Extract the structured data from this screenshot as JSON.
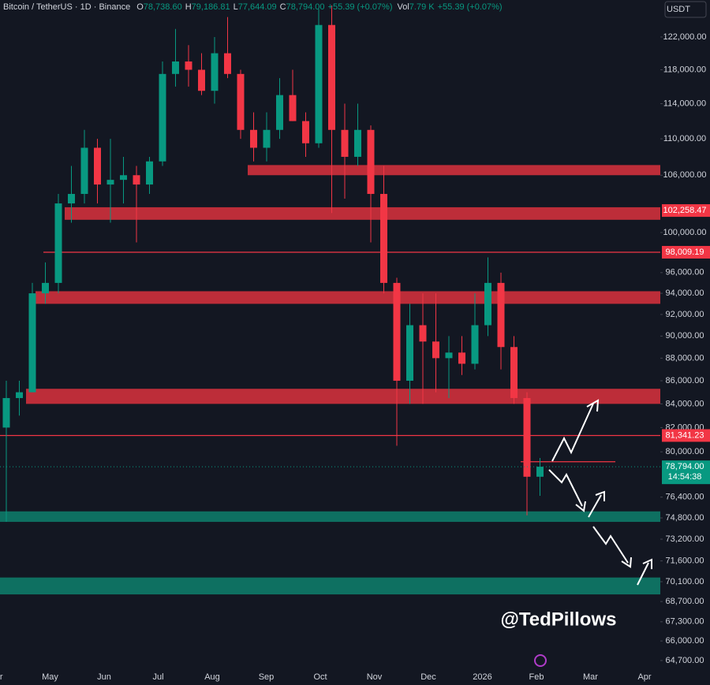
{
  "header": {
    "symbol": "Bitcoin / TetherUS · 1D · Binance",
    "ohlc": [
      {
        "label": "O",
        "value": "78,738.60"
      },
      {
        "label": "H",
        "value": "79,186.81"
      },
      {
        "label": "L",
        "value": "77,644.09"
      },
      {
        "label": "C",
        "value": "78,794.00"
      }
    ],
    "change": "+55.39 (+0.07%)",
    "volume_label": "Vol",
    "volume": "7.79 K",
    "volume_change": "+55.39 (+0.07%)"
  },
  "currency": "USDT",
  "watermark": "@TedPillows",
  "chart_data": {
    "type": "candlestick",
    "up_color": "#089981",
    "down_color": "#f23645",
    "months": [
      "Apr",
      "May",
      "Jun",
      "Jul",
      "Aug",
      "Sep",
      "Oct",
      "Nov",
      "Dec",
      "2026",
      "Feb",
      "Mar",
      "Apr"
    ],
    "open": [
      82000,
      84500,
      85000,
      94000,
      95000,
      103000,
      104000,
      109000,
      105000,
      105500,
      106000,
      105000,
      107500,
      117500,
      119000,
      118000,
      115500,
      120000,
      117500,
      111000,
      109000,
      111000,
      115000,
      112000,
      109500,
      123500,
      111000,
      108000,
      111000,
      104000,
      95000,
      86000,
      91000,
      89500,
      88000,
      88500,
      87500,
      91000,
      95000,
      89000,
      84500,
      78000
    ],
    "high": [
      86000,
      86000,
      95000,
      97000,
      104000,
      107000,
      111000,
      110000,
      110000,
      108000,
      107000,
      108000,
      119000,
      123000,
      121000,
      120000,
      122000,
      124500,
      118000,
      113000,
      113000,
      117000,
      118000,
      113000,
      125500,
      126000,
      114000,
      114000,
      111500,
      107000,
      95500,
      93000,
      94000,
      94000,
      90000,
      90000,
      94000,
      97500,
      96000,
      90000,
      85000,
      79500
    ],
    "low": [
      74500,
      83000,
      85000,
      93000,
      94000,
      101000,
      103000,
      103000,
      101000,
      103000,
      99000,
      104000,
      107000,
      116000,
      116000,
      115000,
      114000,
      117000,
      110000,
      107500,
      107500,
      110000,
      112000,
      108000,
      109000,
      102000,
      103500,
      107000,
      99000,
      94000,
      80500,
      84000,
      84000,
      85000,
      84500,
      86500,
      87000,
      90000,
      87000,
      84000,
      75000,
      76500
    ],
    "close": [
      84500,
      85000,
      94000,
      95000,
      103000,
      104000,
      109000,
      105000,
      105500,
      106000,
      105000,
      107500,
      117500,
      119000,
      118000,
      115500,
      120000,
      117500,
      111000,
      109000,
      111000,
      115000,
      112000,
      109500,
      123500,
      111000,
      108000,
      111000,
      104000,
      95000,
      86000,
      91000,
      89500,
      88000,
      88500,
      87500,
      91000,
      95000,
      89000,
      84500,
      78000,
      78800
    ],
    "log_scale": true,
    "ylim": [
      64180,
      126680
    ],
    "yticks": [
      {
        "value": 122000,
        "label": "122,000.00"
      },
      {
        "value": 118000,
        "label": "118,000.00"
      },
      {
        "value": 114000,
        "label": "114,000.00"
      },
      {
        "value": 110000,
        "label": "110,000.00"
      },
      {
        "value": 106000,
        "label": "106,000.00"
      },
      {
        "value": 100000,
        "label": "100,000.00"
      },
      {
        "value": 96000,
        "label": "96,000.00"
      },
      {
        "value": 94000,
        "label": "94,000.00"
      },
      {
        "value": 92000,
        "label": "92,000.00"
      },
      {
        "value": 90000,
        "label": "90,000.00"
      },
      {
        "value": 88000,
        "label": "88,000.00"
      },
      {
        "value": 86000,
        "label": "86,000.00"
      },
      {
        "value": 84000,
        "label": "84,000.00"
      },
      {
        "value": 82000,
        "label": "82,000.00"
      },
      {
        "value": 80000,
        "label": "80,000.00"
      },
      {
        "value": 76400,
        "label": "76,400.00"
      },
      {
        "value": 74800,
        "label": "74,800.00"
      },
      {
        "value": 73200,
        "label": "73,200.00"
      },
      {
        "value": 71600,
        "label": "71,600.00"
      },
      {
        "value": 70100,
        "label": "70,100.00"
      },
      {
        "value": 68700,
        "label": "68,700.00"
      },
      {
        "value": 67300,
        "label": "67,300.00"
      },
      {
        "value": 66000,
        "label": "66,000.00"
      },
      {
        "value": 64700,
        "label": "64,700.00"
      }
    ],
    "zones": [
      {
        "low": 106000,
        "high": 107100,
        "color": "#d0303c"
      },
      {
        "low": 101300,
        "high": 102600,
        "color": "#d0303c"
      },
      {
        "low": 93000,
        "high": 94200,
        "color": "#d0303c"
      },
      {
        "low": 84000,
        "high": 85300,
        "color": "#d0303c"
      },
      {
        "low": 74500,
        "high": 75300,
        "color": "#0e7a68"
      },
      {
        "low": 69200,
        "high": 70400,
        "color": "#0e7a68"
      }
    ],
    "levels": [
      {
        "value": 98009.19,
        "color": "#f23645"
      },
      {
        "value": 81341.23,
        "color": "#f23645"
      },
      {
        "value": 79200,
        "color": "#f23645"
      }
    ],
    "price_labels": [
      {
        "value": 102258.47,
        "label": "102,258.47",
        "color": "#f23645"
      },
      {
        "value": 98009.19,
        "label": "98,009.19",
        "color": "#f23645"
      },
      {
        "value": 81341.23,
        "label": "81,341.23",
        "color": "#f23645"
      },
      {
        "value": 78794,
        "label": "78,794.00",
        "color": "#089981",
        "countdown": "14:54:38"
      }
    ]
  }
}
